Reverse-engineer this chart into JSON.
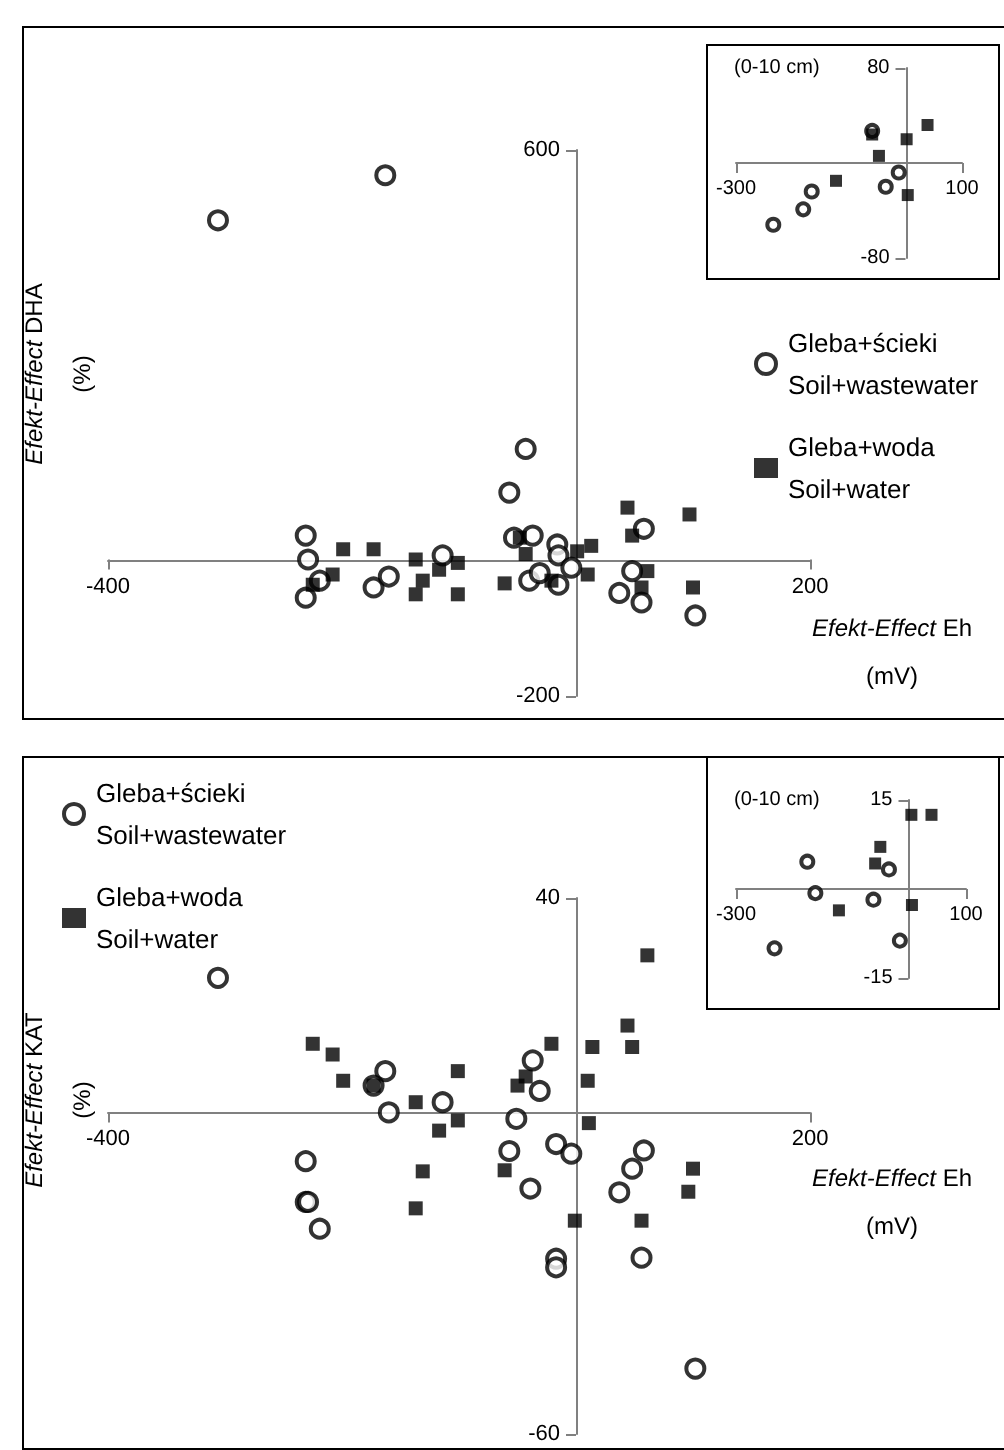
{
  "chart_data": [
    {
      "type": "scatter",
      "xlabel": "Efekt-Effect Eh (mV)",
      "ylabel": "Efekt-Effect DHA (%)",
      "xlim": [
        -400,
        200
      ],
      "ylim": [
        -200,
        600
      ],
      "xticks": [
        -400,
        200
      ],
      "yticks": [
        -200,
        600
      ],
      "legend": "right",
      "series": [
        {
          "name": "Gleba+ścieki Soil+wastewater",
          "color": "#000000",
          "marker": "circle",
          "x": [
            -306,
            -163,
            -43,
            -57,
            -231,
            -229,
            -231,
            -219,
            -173,
            -160,
            -114,
            -53,
            -37,
            -40,
            -31,
            -16,
            -15,
            -15,
            -4,
            37,
            48,
            58,
            56,
            102
          ],
          "values": [
            497,
            563,
            162,
            98,
            35,
            0,
            -56,
            -31,
            -41,
            -25,
            6,
            32,
            35,
            -31,
            -20,
            22,
            6,
            -37,
            -12,
            -49,
            -17,
            45,
            -63,
            -82
          ]
        },
        {
          "name": "Gleba+woda Soil+water",
          "color": "#000000",
          "marker": "square",
          "x": [
            -225,
            -208,
            -199,
            -173,
            -137,
            -137,
            -131,
            -117,
            -101,
            -101,
            -61,
            -48,
            -43,
            -21,
            1,
            13,
            10,
            44,
            48,
            61,
            56,
            97,
            100
          ],
          "values": [
            -37,
            -22,
            15,
            15,
            0,
            -51,
            -31,
            -15,
            -5,
            -51,
            -35,
            32,
            8,
            -31,
            12,
            20,
            -22,
            76,
            35,
            -17,
            -41,
            66,
            -41
          ]
        }
      ]
    },
    {
      "type": "scatter",
      "title": "(0-10 cm)",
      "xlim": [
        -300,
        100
      ],
      "ylim": [
        -80,
        80
      ],
      "xticks": [
        -300,
        100
      ],
      "yticks": [
        -80,
        80
      ],
      "series": [
        {
          "color": "#000000",
          "marker": "circle",
          "x": [
            -234,
            -181,
            -166,
            -35,
            -12,
            -59
          ],
          "values": [
            -52,
            -39,
            -24,
            -20,
            -8,
            27
          ]
        },
        {
          "color": "#000000",
          "marker": "square",
          "x": [
            -123,
            -59,
            -47,
            2,
            39,
            4
          ],
          "values": [
            -15,
            24,
            6,
            20,
            32,
            -27
          ]
        }
      ]
    },
    {
      "type": "scatter",
      "xlabel": "Efekt-Effect Eh (mV)",
      "ylabel": "Efekt-Effect KAT (%)",
      "xlim": [
        -400,
        200
      ],
      "ylim": [
        -60,
        40
      ],
      "xticks": [
        -400,
        200
      ],
      "yticks": [
        -60,
        40
      ],
      "legend": "top left",
      "series": [
        {
          "name": "Gleba+ścieki Soil+wastewater",
          "color": "#000000",
          "marker": "circle",
          "x": [
            -306,
            -163,
            -160,
            -114,
            -37,
            -31,
            -51,
            -57,
            -17,
            -4,
            -39,
            -231,
            -231,
            -229,
            -219,
            -17,
            -17,
            37,
            48,
            58,
            56,
            102,
            -173
          ],
          "values": [
            25.1,
            7.7,
            0,
            1.9,
            9.7,
            4.0,
            -1.2,
            -7.2,
            -5.9,
            -7.7,
            -14.2,
            -9.1,
            -16.7,
            -16.7,
            -21.7,
            -27.3,
            -28.9,
            -14.9,
            -10.5,
            -7.1,
            -27.1,
            -47.8,
            5.0
          ]
        },
        {
          "name": "Gleba+woda Soil+water",
          "color": "#000000",
          "marker": "square",
          "x": [
            -225,
            -208,
            -199,
            -173,
            -137,
            -101,
            -101,
            -117,
            -131,
            -137,
            -61,
            -50,
            -43,
            -21,
            14,
            10,
            11,
            -1,
            44,
            48,
            61,
            56,
            100,
            96
          ],
          "values": [
            12.8,
            10.8,
            5.9,
            5.0,
            1.9,
            7.7,
            -1.5,
            -3.4,
            -11.0,
            -17.9,
            -10.8,
            5.0,
            6.7,
            12.8,
            12.2,
            5.9,
            -2.0,
            -20.2,
            16.2,
            12.2,
            29.3,
            -20.2,
            -10.5,
            -14.8
          ]
        }
      ]
    },
    {
      "type": "scatter",
      "title": "(0-10 cm)",
      "xlim": [
        -300,
        100
      ],
      "ylim": [
        -15,
        15
      ],
      "xticks": [
        -300,
        100
      ],
      "yticks": [
        -15,
        15
      ],
      "series": [
        {
          "color": "#000000",
          "marker": "circle",
          "x": [
            -233,
            -176,
            -162,
            -61,
            -34,
            -15
          ],
          "values": [
            -10.0,
            4.6,
            -0.7,
            -1.8,
            3.3,
            -8.7
          ]
        },
        {
          "color": "#000000",
          "marker": "square",
          "x": [
            -121,
            -58,
            -49,
            5,
            40,
            6
          ],
          "values": [
            -3.6,
            4.3,
            7.1,
            12.5,
            12.5,
            -2.7
          ]
        }
      ]
    }
  ]
}
